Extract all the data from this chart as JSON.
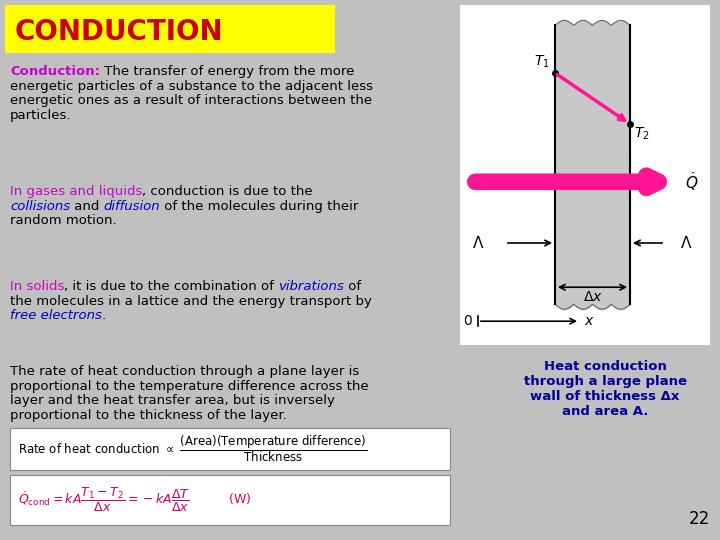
{
  "bg_color": "#c0c0c0",
  "title": "CONDUCTION",
  "title_bg": "#ffff00",
  "title_color": "#cc0000",
  "slide_page": "22",
  "caption_text": "Heat conduction\nthrough a large plane\nwall of thickness Δx\nand area A.",
  "caption_color": "#000099"
}
